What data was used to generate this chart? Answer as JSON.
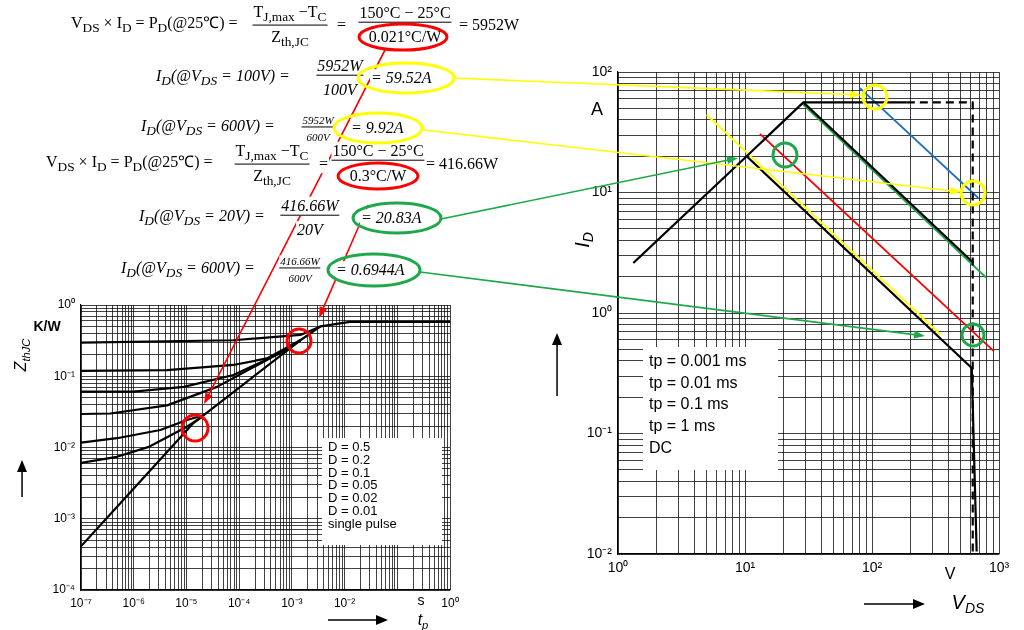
{
  "chart_data": [
    {
      "type": "other",
      "annotations": [
        "V$_{DS}$ × I$_{D}$ = P$_{D}$(@25℃) =",
        "T$_{J,max}$ −T$_{C}$",
        "Z$_{th,JC}$",
        "=",
        "150°C − 25°C",
        "0.021°C/W",
        "= 5952W",
        "I$_{D}$(@V$_{DS}$ = 100V) =",
        "5952W",
        "100V",
        "= 59.52A",
        "I$_{D}$(@V$_{DS}$ = 600V) =",
        "5952W",
        "600V",
        "= 9.92A",
        "V$_{DS}$ × I$_{D}$ = P$_{D}$(@25℃) =",
        "T$_{J,max}$ −T$_{C}$",
        "Z$_{th,JC}$",
        "=",
        "150°C − 25°C",
        "0.3°C/W",
        "= 416.66W",
        "I$_{D}$(@V$_{DS}$ = 20V) =",
        "416.66W",
        "20V",
        "= 20.83A",
        "I$_{D}$(@V$_{DS}$ = 600V) =",
        "416.66W",
        "600V",
        "= 0.6944A"
      ]
    },
    {
      "type": "line",
      "log": "xy",
      "grid": true,
      "xlabel": "t$_{p}$",
      "ylabel": "Z$_{thJC}$",
      "annotations": [
        "K/W",
        "s",
        "D = 0.5",
        "D = 0.2",
        "D = 0.1",
        "D = 0.05",
        "D = 0.02",
        "D = 0.01",
        "single pulse"
      ],
      "xlim": [
        1e-07,
        1
      ],
      "ylim": [
        0.0001,
        1
      ],
      "xticks": [
        {
          "value": 1e-07,
          "label": "10⁻⁷"
        },
        {
          "value": 2e-07,
          "label": null
        },
        {
          "value": 3e-07,
          "label": null
        },
        {
          "value": 4e-07,
          "label": null
        },
        {
          "value": 5e-07,
          "label": null
        },
        {
          "value": 6e-07,
          "label": null
        },
        {
          "value": 7e-07,
          "label": null
        },
        {
          "value": 8e-07,
          "label": null
        },
        {
          "value": 9e-07,
          "label": null
        },
        {
          "value": 1e-06,
          "label": "10⁻⁶"
        },
        {
          "value": 2e-06,
          "label": null
        },
        {
          "value": 3e-06,
          "label": null
        },
        {
          "value": 4e-06,
          "label": null
        },
        {
          "value": 5e-06,
          "label": null
        },
        {
          "value": 6e-06,
          "label": null
        },
        {
          "value": 7e-06,
          "label": null
        },
        {
          "value": 8e-06,
          "label": null
        },
        {
          "value": 9e-06,
          "label": null
        },
        {
          "value": 1e-05,
          "label": "10⁻⁵"
        },
        {
          "value": 2e-05,
          "label": null
        },
        {
          "value": 3e-05,
          "label": null
        },
        {
          "value": 4e-05,
          "label": null
        },
        {
          "value": 5e-05,
          "label": null
        },
        {
          "value": 6e-05,
          "label": null
        },
        {
          "value": 7e-05,
          "label": null
        },
        {
          "value": 8e-05,
          "label": null
        },
        {
          "value": 9e-05,
          "label": null
        },
        {
          "value": 0.0001,
          "label": "10⁻⁴"
        },
        {
          "value": 0.0002,
          "label": null
        },
        {
          "value": 0.0003,
          "label": null
        },
        {
          "value": 0.0004,
          "label": null
        },
        {
          "value": 0.0005,
          "label": null
        },
        {
          "value": 0.0006,
          "label": null
        },
        {
          "value": 0.0007,
          "label": null
        },
        {
          "value": 0.0008,
          "label": null
        },
        {
          "value": 0.0009,
          "label": null
        },
        {
          "value": 0.001,
          "label": "10⁻³"
        },
        {
          "value": 0.002,
          "label": null
        },
        {
          "value": 0.003,
          "label": null
        },
        {
          "value": 0.004,
          "label": null
        },
        {
          "value": 0.005,
          "label": null
        },
        {
          "value": 0.006,
          "label": null
        },
        {
          "value": 0.007,
          "label": null
        },
        {
          "value": 0.008,
          "label": null
        },
        {
          "value": 0.009,
          "label": null
        },
        {
          "value": 0.01,
          "label": "10⁻²"
        },
        {
          "value": 0.02,
          "label": null
        },
        {
          "value": 0.03,
          "label": null
        },
        {
          "value": 0.04,
          "label": null
        },
        {
          "value": 0.05,
          "label": null
        },
        {
          "value": 0.06,
          "label": null
        },
        {
          "value": 0.07,
          "label": null
        },
        {
          "value": 0.08,
          "label": null
        },
        {
          "value": 0.09,
          "label": null
        },
        {
          "value": 0.1,
          "label": null
        },
        {
          "value": 0.2,
          "label": null
        },
        {
          "value": 0.3,
          "label": null
        },
        {
          "value": 0.4,
          "label": null
        },
        {
          "value": 0.5,
          "label": null
        },
        {
          "value": 0.6,
          "label": null
        },
        {
          "value": 0.7,
          "label": null
        },
        {
          "value": 0.8,
          "label": null
        },
        {
          "value": 0.9,
          "label": null
        },
        {
          "value": 1,
          "label": "10⁰"
        }
      ],
      "yticks": [
        {
          "value": 0.0001,
          "label": "10⁻⁴"
        },
        {
          "value": 0.0002,
          "label": null
        },
        {
          "value": 0.0003,
          "label": null
        },
        {
          "value": 0.0004,
          "label": null
        },
        {
          "value": 0.0005,
          "label": null
        },
        {
          "value": 0.0006,
          "label": null
        },
        {
          "value": 0.0007,
          "label": null
        },
        {
          "value": 0.0008,
          "label": null
        },
        {
          "value": 0.0009,
          "label": null
        },
        {
          "value": 0.001,
          "label": "10⁻³"
        },
        {
          "value": 0.002,
          "label": null
        },
        {
          "value": 0.003,
          "label": null
        },
        {
          "value": 0.004,
          "label": null
        },
        {
          "value": 0.005,
          "label": null
        },
        {
          "value": 0.006,
          "label": null
        },
        {
          "value": 0.007,
          "label": null
        },
        {
          "value": 0.008,
          "label": null
        },
        {
          "value": 0.009,
          "label": null
        },
        {
          "value": 0.01,
          "label": "10⁻²"
        },
        {
          "value": 0.02,
          "label": null
        },
        {
          "value": 0.03,
          "label": null
        },
        {
          "value": 0.04,
          "label": null
        },
        {
          "value": 0.05,
          "label": null
        },
        {
          "value": 0.06,
          "label": null
        },
        {
          "value": 0.07,
          "label": null
        },
        {
          "value": 0.08,
          "label": null
        },
        {
          "value": 0.09,
          "label": null
        },
        {
          "value": 0.1,
          "label": "10⁻¹"
        },
        {
          "value": 0.2,
          "label": null
        },
        {
          "value": 0.3,
          "label": null
        },
        {
          "value": 0.4,
          "label": null
        },
        {
          "value": 0.5,
          "label": null
        },
        {
          "value": 0.6,
          "label": null
        },
        {
          "value": 0.7,
          "label": null
        },
        {
          "value": 0.8,
          "label": null
        },
        {
          "value": 0.9,
          "label": null
        },
        {
          "value": 1,
          "label": "10⁰"
        }
      ],
      "series": [
        {
          "color": "#000000",
          "x": [
            1e-07,
            7.8e-05,
            0.00145,
            0.0035
          ],
          "values": [
            0.296,
            0.32,
            0.38,
            0.5
          ]
        },
        {
          "color": "#000000",
          "x": [
            1e-07,
            4.3e-06,
            7.8e-05,
            0.000335,
            0.00145
          ],
          "values": [
            0.119,
            0.122,
            0.144,
            0.178,
            0.32
          ]
        },
        {
          "color": "#000000",
          "x": [
            1e-07,
            1e-06,
            8.9e-06,
            7.8e-05,
            0.00069,
            0.00145
          ],
          "values": [
            0.061,
            0.061,
            0.071,
            0.104,
            0.221,
            0.32
          ]
        },
        {
          "color": "#000000",
          "x": [
            1e-07,
            3.6e-07,
            4.3e-06,
            3.8e-05,
            0.000335,
            0.00145
          ],
          "values": [
            0.0295,
            0.03,
            0.039,
            0.071,
            0.169,
            0.32
          ]
        },
        {
          "color": "#000000",
          "x": [
            1e-07,
            4.8e-07,
            3.2e-06,
            1.02e-05,
            2e-05
          ],
          "values": [
            0.0117,
            0.0135,
            0.0176,
            0.0243,
            0.028
          ]
        },
        {
          "color": "#000000",
          "x": [
            1e-07,
            4.8e-07,
            2e-06,
            1.02e-05,
            2e-05
          ],
          "values": [
            0.0061,
            0.0074,
            0.0103,
            0.0196,
            0.027
          ]
        },
        {
          "color": "#000000",
          "x": [
            1e-07,
            1.36e-05,
            0.00145,
            0.0035,
            0.0126,
            1
          ],
          "values": [
            0.00041,
            0.022,
            0.32,
            0.5,
            0.58,
            0.58
          ]
        }
      ]
    },
    {
      "type": "line",
      "log": "xy",
      "grid": true,
      "xlabel": "V$_{DS}$",
      "ylabel": "I$_{D}$",
      "annotations": [
        "A",
        "V",
        "tp = 0.001 ms",
        "tp = 0.01 ms",
        "tp = 0.1 ms",
        "tp = 1 ms",
        "DC"
      ],
      "xlim": [
        1,
        1000
      ],
      "ylim": [
        0.01,
        100
      ],
      "xticks": [
        {
          "value": 1,
          "label": "10⁰"
        },
        {
          "value": 2,
          "label": null
        },
        {
          "value": 3,
          "label": null
        },
        {
          "value": 4,
          "label": null
        },
        {
          "value": 5,
          "label": null
        },
        {
          "value": 6,
          "label": null
        },
        {
          "value": 7,
          "label": null
        },
        {
          "value": 8,
          "label": null
        },
        {
          "value": 9,
          "label": null
        },
        {
          "value": 10,
          "label": "10¹"
        },
        {
          "value": 20,
          "label": null
        },
        {
          "value": 30,
          "label": null
        },
        {
          "value": 40,
          "label": null
        },
        {
          "value": 50,
          "label": null
        },
        {
          "value": 60,
          "label": null
        },
        {
          "value": 70,
          "label": null
        },
        {
          "value": 80,
          "label": null
        },
        {
          "value": 90,
          "label": null
        },
        {
          "value": 100,
          "label": "10²"
        },
        {
          "value": 200,
          "label": null
        },
        {
          "value": 300,
          "label": null
        },
        {
          "value": 400,
          "label": null
        },
        {
          "value": 500,
          "label": null
        },
        {
          "value": 600,
          "label": null
        },
        {
          "value": 700,
          "label": null
        },
        {
          "value": 800,
          "label": null
        },
        {
          "value": 900,
          "label": null
        },
        {
          "value": 1000,
          "label": "10³"
        }
      ],
      "yticks": [
        {
          "value": 0.01,
          "label": "10⁻²"
        },
        {
          "value": 0.02,
          "label": null
        },
        {
          "value": 0.03,
          "label": null
        },
        {
          "value": 0.04,
          "label": null
        },
        {
          "value": 0.05,
          "label": null
        },
        {
          "value": 0.06,
          "label": null
        },
        {
          "value": 0.07,
          "label": null
        },
        {
          "value": 0.08,
          "label": null
        },
        {
          "value": 0.09,
          "label": null
        },
        {
          "value": 0.1,
          "label": "10⁻¹"
        },
        {
          "value": 0.2,
          "label": null
        },
        {
          "value": 0.3,
          "label": null
        },
        {
          "value": 0.4,
          "label": null
        },
        {
          "value": 0.5,
          "label": null
        },
        {
          "value": 0.6,
          "label": null
        },
        {
          "value": 0.7,
          "label": null
        },
        {
          "value": 0.8,
          "label": null
        },
        {
          "value": 0.9,
          "label": null
        },
        {
          "value": 1,
          "label": "10⁰"
        },
        {
          "value": 2,
          "label": null
        },
        {
          "value": 3,
          "label": null
        },
        {
          "value": 4,
          "label": null
        },
        {
          "value": 5,
          "label": null
        },
        {
          "value": 6,
          "label": null
        },
        {
          "value": 7,
          "label": null
        },
        {
          "value": 8,
          "label": null
        },
        {
          "value": 9,
          "label": null
        },
        {
          "value": 10,
          "label": "10¹"
        },
        {
          "value": 20,
          "label": null
        },
        {
          "value": 30,
          "label": null
        },
        {
          "value": 40,
          "label": null
        },
        {
          "value": 50,
          "label": null
        },
        {
          "value": 60,
          "label": null
        },
        {
          "value": 70,
          "label": null
        },
        {
          "value": 80,
          "label": null
        },
        {
          "value": 90,
          "label": null
        },
        {
          "value": 100,
          "label": "10²"
        }
      ],
      "series": [
        {
          "color": "#000000",
          "x": [
            1.32,
            10.3,
            610,
            667
          ],
          "values": [
            2.6,
            20,
            0.35,
            0.0105
          ]
        },
        {
          "color": "#000000",
          "x": [
            10.3,
            28.8,
            188
          ],
          "values": [
            20,
            56,
            56
          ]
        },
        {
          "color": "#000000",
          "line_style": "dashed",
          "x": [
            188,
            621,
            621
          ],
          "values": [
            56,
            56,
            0.0105
          ]
        },
        {
          "color": "#000000",
          "x": [
            28.8,
            630
          ],
          "values": [
            56,
            2.6
          ]
        },
        {
          "color": "#ffff00",
          "x": [
            4.99,
            347
          ],
          "values": [
            44.2,
            0.66
          ]
        },
        {
          "color": "#ff0000",
          "x": [
            13.1,
            914
          ],
          "values": [
            30.7,
            0.48
          ]
        },
        {
          "color": "#1ea84a",
          "x": [
            27.9,
            790
          ],
          "values": [
            55.3,
            1.97
          ]
        },
        {
          "color": "#1f6fc0",
          "x": [
            80.5,
            687
          ],
          "values": [
            73.6,
            9.0
          ]
        }
      ]
    }
  ]
}
